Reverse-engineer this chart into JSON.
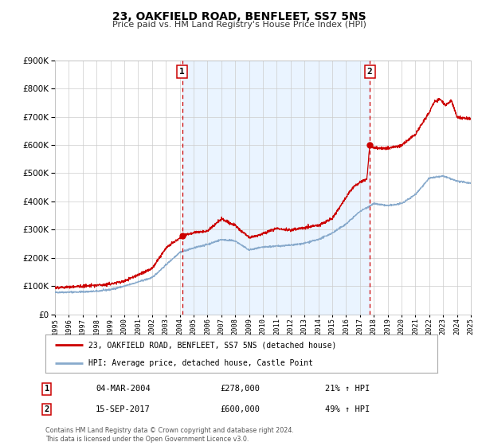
{
  "title": "23, OAKFIELD ROAD, BENFLEET, SS7 5NS",
  "subtitle": "Price paid vs. HM Land Registry's House Price Index (HPI)",
  "sale1_date": "04-MAR-2004",
  "sale1_price": 278000,
  "sale1_pct": "21%",
  "sale2_date": "15-SEP-2017",
  "sale2_price": 600000,
  "sale2_pct": "49%",
  "legend1": "23, OAKFIELD ROAD, BENFLEET, SS7 5NS (detached house)",
  "legend2": "HPI: Average price, detached house, Castle Point",
  "footer1": "Contains HM Land Registry data © Crown copyright and database right 2024.",
  "footer2": "This data is licensed under the Open Government Licence v3.0.",
  "red_color": "#cc0000",
  "blue_color": "#88aacc",
  "bg_shaded": "#ddeeff",
  "vline_color": "#cc0000",
  "ylim": [
    0,
    900000
  ],
  "yticks": [
    0,
    100000,
    200000,
    300000,
    400000,
    500000,
    600000,
    700000,
    800000,
    900000
  ],
  "year_start": 1995,
  "year_end": 2025,
  "sale1_year": 2004.17,
  "sale2_year": 2017.71
}
